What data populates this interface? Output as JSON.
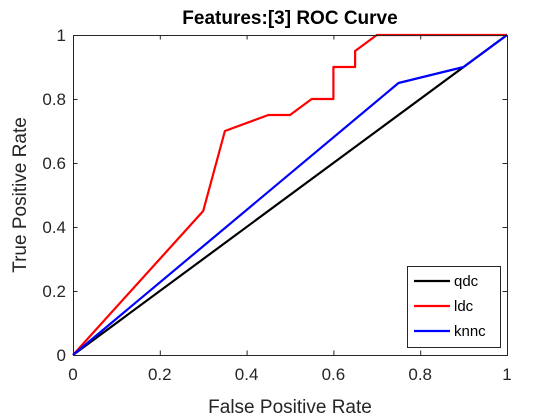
{
  "chart_data": {
    "type": "line",
    "title": "Features:[3]  ROC Curve",
    "xlabel": "False Positive Rate",
    "ylabel": "True Positive Rate",
    "xlim": [
      0,
      1
    ],
    "ylim": [
      0,
      1
    ],
    "xticks": [
      0,
      0.2,
      0.4,
      0.6,
      0.8,
      1
    ],
    "yticks": [
      0,
      0.2,
      0.4,
      0.6,
      0.8,
      1
    ],
    "xtick_labels": [
      "0",
      "0.2",
      "0.4",
      "0.6",
      "0.8",
      "1"
    ],
    "ytick_labels": [
      "0",
      "0.2",
      "0.4",
      "0.6",
      "0.8",
      "1"
    ],
    "grid": false,
    "legend_position": "bottom-right",
    "series": [
      {
        "name": "qdc",
        "color": "#000000",
        "x": [
          0,
          1
        ],
        "y": [
          0,
          1
        ]
      },
      {
        "name": "ldc",
        "color": "#ff0000",
        "x": [
          0,
          0.3,
          0.35,
          0.45,
          0.5,
          0.55,
          0.6,
          0.6,
          0.65,
          0.65,
          0.7,
          1
        ],
        "y": [
          0,
          0.45,
          0.7,
          0.75,
          0.75,
          0.8,
          0.8,
          0.9,
          0.9,
          0.95,
          1,
          1
        ]
      },
      {
        "name": "knnc",
        "color": "#0000ff",
        "x": [
          0,
          0.75,
          0.9,
          1
        ],
        "y": [
          0,
          0.85,
          0.9,
          1
        ]
      }
    ]
  }
}
